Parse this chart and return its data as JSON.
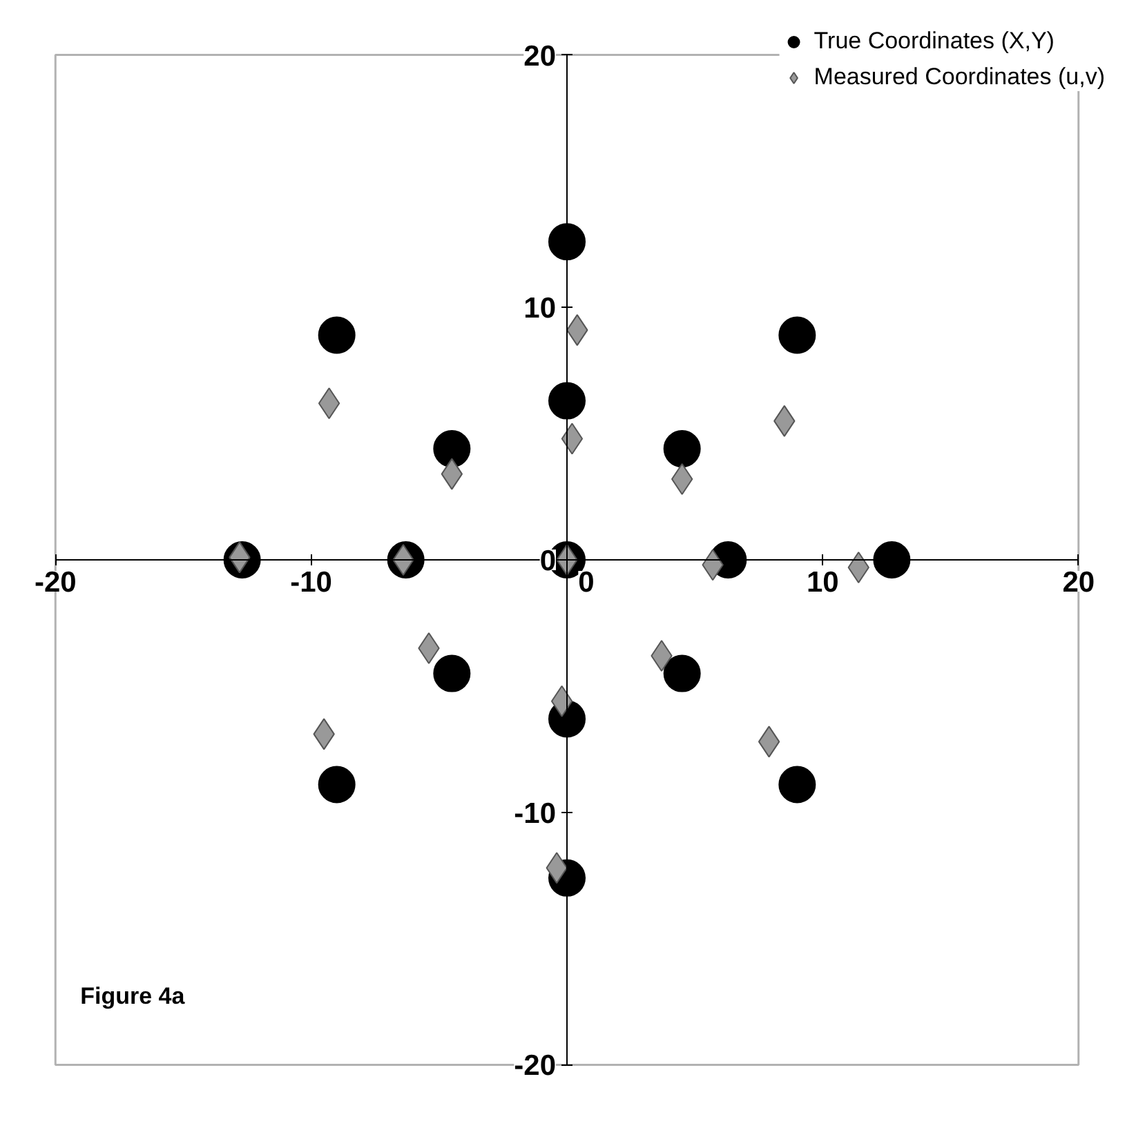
{
  "chart_data": {
    "type": "scatter",
    "xlim": [
      -20,
      20
    ],
    "ylim": [
      -20,
      20
    ],
    "xticks": [
      -20,
      -10,
      0,
      10,
      20
    ],
    "yticks": [
      -20,
      -10,
      0,
      10,
      20
    ],
    "grid": false,
    "legend": "top right",
    "annotations": [
      "Figure 4a"
    ],
    "series": [
      {
        "name": "True Coordinates (X,Y)",
        "color": "#000000",
        "marker": "circle",
        "x": [
          0,
          -9.0,
          0,
          -4.5,
          -12.7,
          -6.3,
          0,
          9.0,
          4.5,
          6.3,
          12.7,
          -4.5,
          -9.0,
          0,
          0,
          4.5,
          9.0
        ],
        "values": [
          12.6,
          8.9,
          6.3,
          4.4,
          0,
          0,
          0,
          8.9,
          4.4,
          0,
          0,
          -4.5,
          -8.9,
          -6.3,
          -12.6,
          -4.5,
          -8.9
        ]
      },
      {
        "name": "Measured Coordinates (u,v)",
        "color": "#999999",
        "marker": "diamond",
        "x": [
          0.4,
          -9.3,
          0.2,
          -4.5,
          -12.8,
          -6.4,
          0,
          8.5,
          4.5,
          5.7,
          11.4,
          -5.4,
          -9.5,
          -0.2,
          -0.4,
          3.7,
          7.9
        ],
        "values": [
          9.1,
          6.2,
          4.8,
          3.4,
          0.1,
          0,
          0,
          5.5,
          3.2,
          -0.2,
          -0.3,
          -3.5,
          -6.9,
          -5.6,
          -12.2,
          -3.8,
          -7.2
        ]
      }
    ]
  }
}
